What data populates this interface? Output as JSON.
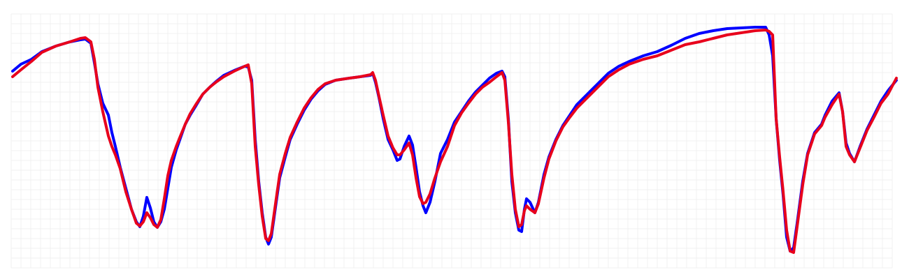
{
  "chart_data": {
    "type": "line",
    "x": [
      18,
      30,
      45,
      60,
      80,
      100,
      115,
      122,
      130,
      135,
      140,
      147,
      155,
      160,
      165,
      172,
      180,
      188,
      195,
      200,
      205,
      210,
      215,
      220,
      225,
      230,
      235,
      240,
      245,
      252,
      258,
      265,
      272,
      280,
      290,
      300,
      310,
      320,
      335,
      350,
      355,
      360,
      365,
      370,
      375,
      380,
      384,
      388,
      395,
      400,
      408,
      415,
      425,
      435,
      445,
      455,
      465,
      480,
      500,
      515,
      530,
      533,
      537,
      542,
      548,
      555,
      562,
      568,
      572,
      578,
      585,
      590,
      595,
      600,
      605,
      609,
      615,
      622,
      630,
      640,
      650,
      660,
      670,
      680,
      690,
      700,
      710,
      718,
      722,
      727,
      732,
      737,
      742,
      746,
      750,
      753,
      758,
      765,
      770,
      778,
      785,
      795,
      805,
      815,
      825,
      840,
      855,
      870,
      885,
      900,
      920,
      940,
      960,
      980,
      1000,
      1020,
      1040,
      1060,
      1080,
      1095,
      1100,
      1105,
      1110,
      1115,
      1120,
      1125,
      1130,
      1135,
      1140,
      1148,
      1155,
      1165,
      1175,
      1180,
      1190,
      1200,
      1205,
      1210,
      1215,
      1222,
      1230,
      1240,
      1250,
      1260,
      1270,
      1282
    ],
    "series": [
      {
        "color": "#0000ff",
        "values": [
          298,
          308,
          315,
          326,
          334,
          340,
          343,
          344,
          338,
          310,
          280,
          252,
          235,
          210,
          190,
          160,
          130,
          100,
          82,
          75,
          90,
          117,
          102,
          82,
          74,
          82,
          100,
          130,
          160,
          185,
          202,
          222,
          235,
          248,
          265,
          275,
          284,
          292,
          299,
          305,
          304,
          285,
          200,
          140,
          95,
          60,
          50,
          60,
          110,
          145,
          175,
          200,
          222,
          242,
          258,
          270,
          279,
          285,
          288,
          290,
          292,
          295,
          282,
          260,
          230,
          200,
          185,
          170,
          172,
          190,
          205,
          192,
          160,
          125,
          105,
          95,
          110,
          140,
          180,
          200,
          225,
          240,
          255,
          268,
          278,
          288,
          295,
          298,
          290,
          230,
          140,
          95,
          70,
          68,
          100,
          115,
          110,
          95,
          110,
          150,
          175,
          200,
          220,
          235,
          250,
          265,
          280,
          295,
          305,
          312,
          320,
          326,
          335,
          345,
          352,
          356,
          359,
          360,
          361,
          361,
          350,
          320,
          230,
          170,
          120,
          60,
          40,
          45,
          80,
          140,
          180,
          210,
          222,
          235,
          255,
          267,
          240,
          195,
          180,
          168,
          190,
          215,
          235,
          255,
          270,
          285
        ]
      },
      {
        "color": "#e8001c",
        "values": [
          290,
          300,
          312,
          325,
          334,
          340,
          345,
          346,
          340,
          315,
          275,
          240,
          205,
          190,
          178,
          158,
          125,
          100,
          80,
          76,
          82,
          95,
          88,
          78,
          74,
          85,
          115,
          148,
          170,
          190,
          205,
          222,
          237,
          250,
          265,
          275,
          283,
          290,
          298,
          305,
          307,
          280,
          190,
          135,
          90,
          58,
          55,
          65,
          115,
          150,
          180,
          203,
          225,
          245,
          260,
          272,
          280,
          285,
          288,
          290,
          293,
          296,
          285,
          262,
          235,
          205,
          188,
          178,
          178,
          185,
          195,
          178,
          145,
          118,
          108,
          110,
          122,
          145,
          168,
          190,
          220,
          238,
          252,
          265,
          275,
          282,
          290,
          296,
          285,
          225,
          150,
          100,
          75,
          78,
          98,
          105,
          100,
          95,
          108,
          145,
          172,
          198,
          218,
          232,
          245,
          260,
          275,
          290,
          300,
          308,
          315,
          320,
          328,
          336,
          340,
          345,
          350,
          353,
          356,
          357,
          355,
          350,
          230,
          175,
          125,
          70,
          40,
          38,
          75,
          135,
          178,
          208,
          220,
          232,
          250,
          265,
          240,
          190,
          178,
          168,
          188,
          213,
          232,
          252,
          265,
          288
        ]
      }
    ],
    "xlim": [
      0,
      1300
    ],
    "ylim": [
      0,
      400
    ],
    "grid": true,
    "xticks": [
      16,
      30,
      44,
      58,
      72,
      86,
      100,
      114,
      128,
      142,
      156,
      170,
      184,
      198,
      212,
      226,
      240,
      254,
      268,
      282,
      296,
      310,
      324,
      338,
      352,
      366,
      380,
      394,
      408,
      422,
      436,
      450,
      464,
      478,
      492,
      506,
      520,
      534,
      548,
      562,
      576,
      590,
      604,
      618,
      632,
      646,
      660,
      674,
      688,
      702,
      716,
      730,
      744,
      758,
      772,
      786,
      800,
      814,
      828,
      842,
      856,
      870,
      884,
      898,
      912,
      926,
      940,
      954,
      968,
      982,
      996,
      1010,
      1024,
      1038,
      1052,
      1066,
      1080,
      1094,
      1108,
      1122,
      1136,
      1150,
      1164,
      1178,
      1192,
      1206,
      1220,
      1234,
      1248,
      1262,
      1276
    ],
    "yticks": [
      16,
      30,
      44,
      58,
      72,
      86,
      100,
      114,
      128,
      142,
      156,
      170,
      184,
      198,
      212,
      226,
      240,
      254,
      268,
      282,
      296,
      310,
      324,
      338,
      352,
      366,
      380
    ]
  }
}
